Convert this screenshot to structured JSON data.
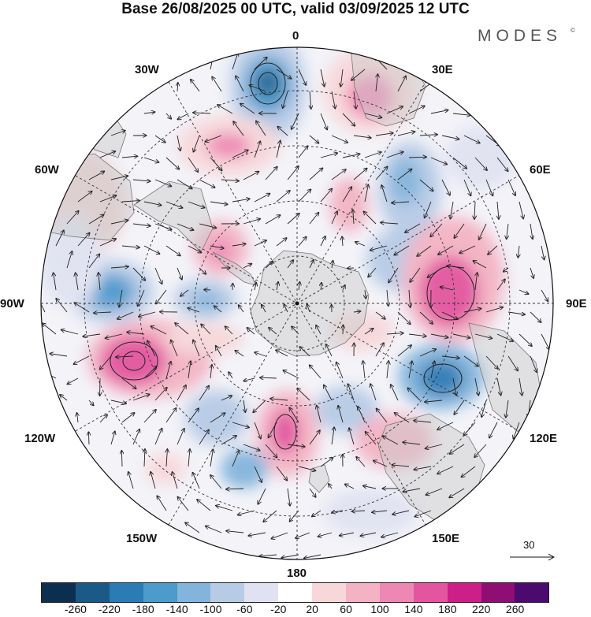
{
  "title": "Base 26/08/2025 00 UTC, valid 03/09/2025 12 UTC",
  "brand": "MODES",
  "brand_mark": "©",
  "longitude_labels": {
    "top": "0",
    "bottom": "180",
    "left": "90W",
    "right": "90E",
    "w30": "30W",
    "w60": "60W",
    "w120": "120W",
    "w150": "150W",
    "e30": "30E",
    "e60": "60E",
    "e120": "120E",
    "e150": "150E"
  },
  "reference_vector": {
    "label": "30",
    "icon": "arrow-right-icon"
  },
  "colorbar": {
    "colors": [
      "#0d2f4f",
      "#1b5a86",
      "#2b7cb5",
      "#4d9acc",
      "#83b4dc",
      "#b7cbe6",
      "#e0e2f1",
      "#ffffff",
      "#f7d7d9",
      "#f3b3c4",
      "#ee87b3",
      "#e3559f",
      "#cc1f87",
      "#8e0e74",
      "#4b0a6e"
    ],
    "ticks": [
      "-260",
      "-220",
      "-180",
      "-140",
      "-100",
      "-60",
      "-20",
      "20",
      "60",
      "100",
      "140",
      "180",
      "220",
      "260"
    ]
  }
}
